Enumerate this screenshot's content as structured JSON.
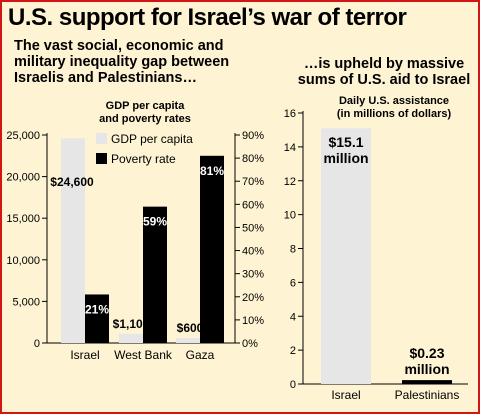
{
  "headline": "U.S. support for Israel’s war of terror",
  "subhead_left": [
    "The vast social, economic and",
    "military inequality gap between",
    "Israelis and Palestinians…"
  ],
  "subhead_right": [
    "…is upheld by massive",
    "sums of U.S. aid to Israel"
  ],
  "colors": {
    "border": "#d41515",
    "background": "#fef4d3",
    "light_bar": "#e6e6e6",
    "dark_bar": "#000000"
  },
  "chart_data": [
    {
      "type": "bar",
      "title": [
        "GDP per capita",
        "and poverty rates"
      ],
      "categories": [
        "Israel",
        "West Bank",
        "Gaza"
      ],
      "series": [
        {
          "name": "GDP per capita",
          "axis": "left",
          "values": [
            24600,
            1100,
            600
          ],
          "labels": [
            "$24,600",
            "$1,100",
            "$600"
          ]
        },
        {
          "name": "Poverty rate",
          "axis": "right",
          "values": [
            21,
            59,
            81
          ],
          "labels": [
            "21%",
            "59%",
            "81%"
          ]
        }
      ],
      "y_left": {
        "min": 0,
        "max": 25000,
        "ticks": [
          0,
          5000,
          10000,
          15000,
          20000,
          25000
        ],
        "tick_labels": [
          "0",
          "5,000",
          "10,000",
          "15,000",
          "20,000",
          "25,000"
        ]
      },
      "y_right": {
        "min": 0,
        "max": 90,
        "ticks": [
          0,
          10,
          20,
          30,
          40,
          50,
          60,
          70,
          80,
          90
        ],
        "tick_labels": [
          "0%",
          "10%",
          "20%",
          "30%",
          "40%",
          "50%",
          "60%",
          "70%",
          "80%",
          "90%"
        ]
      },
      "legend": "top-center",
      "grid": false
    },
    {
      "type": "bar",
      "title": [
        "Daily U.S. assistance",
        "(in millions of dollars)"
      ],
      "categories": [
        "Israel",
        "Palestinians"
      ],
      "values": [
        15.1,
        0.23
      ],
      "labels": [
        [
          "$15.1",
          "million"
        ],
        [
          "$0.23",
          "million"
        ]
      ],
      "y": {
        "min": 0,
        "max": 16,
        "ticks": [
          0,
          2,
          4,
          6,
          8,
          10,
          12,
          14,
          16
        ],
        "tick_labels": [
          "0",
          "2",
          "4",
          "6",
          "8",
          "10",
          "12",
          "14",
          "16"
        ]
      },
      "grid": false
    }
  ]
}
